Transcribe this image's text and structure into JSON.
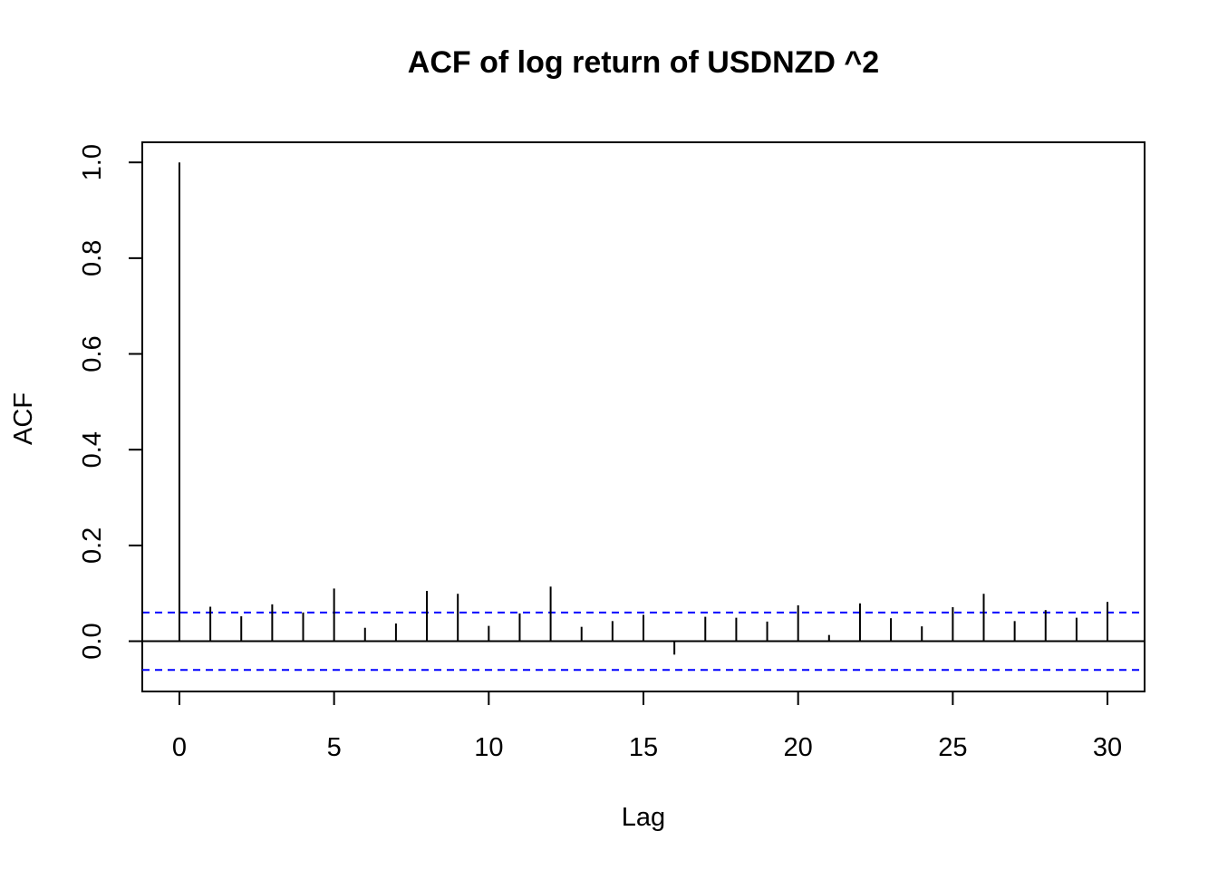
{
  "chart_data": {
    "type": "bar",
    "title": "ACF of log return of USDNZD ^2",
    "xlabel": "Lag",
    "ylabel": "ACF",
    "xlim": [
      -1.2,
      31.2
    ],
    "ylim": [
      -0.105,
      1.042
    ],
    "x_ticks": [
      "0",
      "5",
      "10",
      "15",
      "20",
      "25",
      "30"
    ],
    "y_ticks": [
      "0.0",
      "0.2",
      "0.4",
      "0.6",
      "0.8",
      "1.0"
    ],
    "grid": false,
    "series": [
      {
        "lags": [
          0,
          1,
          2,
          3,
          4,
          5,
          6,
          7,
          8,
          9,
          10,
          11,
          12,
          13,
          14,
          15,
          16,
          17,
          18,
          19,
          20,
          21,
          22,
          23,
          24,
          25,
          26,
          27,
          28,
          29,
          30
        ],
        "values": [
          1.0,
          0.072,
          0.052,
          0.077,
          0.06,
          0.11,
          0.028,
          0.037,
          0.105,
          0.099,
          0.032,
          0.058,
          0.114,
          0.03,
          0.042,
          0.055,
          -0.028,
          0.051,
          0.049,
          0.041,
          0.075,
          0.013,
          0.079,
          0.048,
          0.031,
          0.071,
          0.099,
          0.042,
          0.065,
          0.049,
          0.082
        ]
      }
    ],
    "confidence_bounds": {
      "upper": 0.06,
      "lower": -0.06,
      "color": "#0000ff",
      "style": "dashed"
    },
    "colors": {
      "lines": "#000000",
      "confidence": "#0000ff"
    }
  }
}
